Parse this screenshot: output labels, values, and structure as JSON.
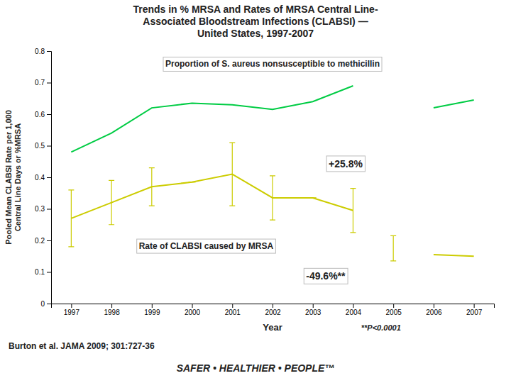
{
  "chart_data": {
    "type": "line",
    "title": [
      "Trends in % MRSA and Rates of MRSA Central Line-",
      "Associated Bloodstream Infections (CLABSI) —",
      "United States, 1997-2007"
    ],
    "x_label": "Year",
    "y_label": "Pooled Mean CLABSI Rate per 1,000\nCentral Line Days or %MRSA",
    "x": [
      1997,
      1998,
      1999,
      2000,
      2001,
      2002,
      2003,
      2004,
      2005,
      2006,
      2007
    ],
    "series": [
      {
        "name": "Proportion of S. aureus nonsusceptible to methicillin",
        "color": "#00cc44",
        "values": [
          0.48,
          0.54,
          0.62,
          0.635,
          0.63,
          0.615,
          0.64,
          0.69,
          null,
          0.62,
          0.645
        ]
      },
      {
        "name": "Rate of CLABSI caused by MRSA",
        "color": "#cccc00",
        "values": [
          0.27,
          0.32,
          0.37,
          0.385,
          0.41,
          0.335,
          0.335,
          0.295,
          null,
          0.155,
          0.15
        ],
        "error_bars": {
          "x": [
            1997,
            1998,
            1999,
            2001,
            2002,
            2004,
            2005
          ],
          "y": [
            0.27,
            0.32,
            0.37,
            0.41,
            0.335,
            0.295,
            0.175
          ],
          "low": [
            0.09,
            0.07,
            0.06,
            0.1,
            0.07,
            0.07,
            0.04
          ],
          "high": [
            0.09,
            0.07,
            0.06,
            0.1,
            0.07,
            0.07,
            0.04
          ]
        },
        "dashes": {
          "x": [
            2000,
            2003
          ],
          "y": [
            0.385,
            0.335
          ]
        }
      }
    ],
    "xlim": [
      1996.5,
      2007.5
    ],
    "xticks": [
      1997,
      1998,
      1999,
      2000,
      2001,
      2002,
      2003,
      2004,
      2005,
      2006,
      2007
    ],
    "ylim": [
      0,
      0.8
    ],
    "yticks": [
      0,
      0.1,
      0.2,
      0.3,
      0.4,
      0.5,
      0.6,
      0.7,
      0.8
    ],
    "grid": false,
    "annotations": [
      {
        "text": "+25.8%"
      },
      {
        "text": "-49.6%**"
      },
      {
        "text": "**P<0.0001"
      },
      {
        "text": "Burton et al. JAMA 2009; 301:727-36"
      },
      {
        "text": "SAFER • HEALTHIER • PEOPLE™"
      }
    ]
  }
}
